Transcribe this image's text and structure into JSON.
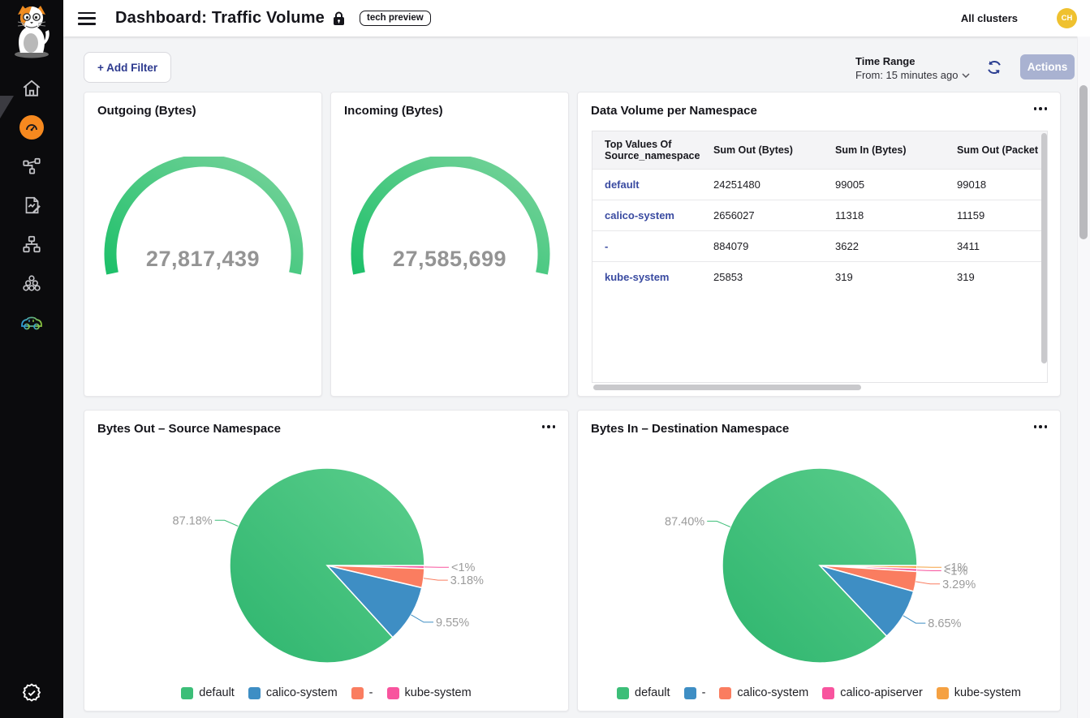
{
  "header": {
    "title": "Dashboard: Traffic Volume",
    "tech_preview_badge": "tech preview",
    "all_clusters_label": "All clusters",
    "avatar_initials": "CH"
  },
  "sidebar": {
    "items": [
      {
        "name": "home"
      },
      {
        "name": "dashboards",
        "active": true
      },
      {
        "name": "service-graph"
      },
      {
        "name": "reports"
      },
      {
        "name": "network-topology"
      },
      {
        "name": "workload-clusters"
      },
      {
        "name": "test-drive-car"
      },
      {
        "name": "compliance-check"
      }
    ]
  },
  "filter_bar": {
    "add_filter_label": "+ Add Filter",
    "time_range_label": "Time Range",
    "time_range_value": "From: 15 minutes ago",
    "actions_label": "Actions"
  },
  "cards": {
    "outgoing": {
      "title": "Outgoing (Bytes)",
      "value_label": "27,817,439"
    },
    "incoming": {
      "title": "Incoming (Bytes)",
      "value_label": "27,585,699"
    },
    "table": {
      "title": "Data Volume per Namespace",
      "columns": [
        "Top Values Of Source_namespace",
        "Sum Out (Bytes)",
        "Sum In (Bytes)",
        "Sum Out (Packet"
      ],
      "rows": [
        [
          "default",
          "24251480",
          "99005",
          "99018"
        ],
        [
          "calico-system",
          "2656027",
          "11318",
          "11159"
        ],
        [
          "-",
          "884079",
          "3622",
          "3411"
        ],
        [
          "kube-system",
          "25853",
          "319",
          "319"
        ]
      ]
    },
    "pie_out": {
      "title": "Bytes Out – Source Namespace"
    },
    "pie_in": {
      "title": "Bytes In – Destination Namespace"
    }
  },
  "chart_data": [
    {
      "type": "gauge",
      "title": "Outgoing (Bytes)",
      "value": 27817439,
      "value_label": "27,817,439",
      "color_start": "#1ec06a",
      "color_end": "#7ad39c"
    },
    {
      "type": "gauge",
      "title": "Incoming (Bytes)",
      "value": 27585699,
      "value_label": "27,585,699",
      "color_start": "#1ec06a",
      "color_end": "#7ad39c"
    },
    {
      "type": "pie",
      "title": "Bytes Out – Source Namespace",
      "legend_position": "bottom",
      "slices": [
        {
          "name": "default",
          "pct": 87.18,
          "label": "87.18%",
          "color": "#3cbe78"
        },
        {
          "name": "calico-system",
          "pct": 9.55,
          "label": "9.55%",
          "color": "#3e8ec4"
        },
        {
          "name": "-",
          "pct": 3.18,
          "label": "3.18%",
          "color": "#fa7d60"
        },
        {
          "name": "kube-system",
          "pct": 0.09,
          "label": "<1%",
          "color": "#f8549e"
        }
      ]
    },
    {
      "type": "pie",
      "title": "Bytes In – Destination Namespace",
      "legend_position": "bottom",
      "slices": [
        {
          "name": "default",
          "pct": 87.4,
          "label": "87.40%",
          "color": "#3cbe78"
        },
        {
          "name": "-",
          "pct": 8.65,
          "label": "8.65%",
          "color": "#3e8ec4"
        },
        {
          "name": "calico-system",
          "pct": 3.29,
          "label": "3.29%",
          "color": "#fa7d60"
        },
        {
          "name": "calico-apiserver",
          "pct": 0.33,
          "label": "<1%",
          "color": "#f8549e"
        },
        {
          "name": "kube-system",
          "pct": 0.33,
          "label": "<1%",
          "color": "#f5a142"
        }
      ]
    }
  ]
}
